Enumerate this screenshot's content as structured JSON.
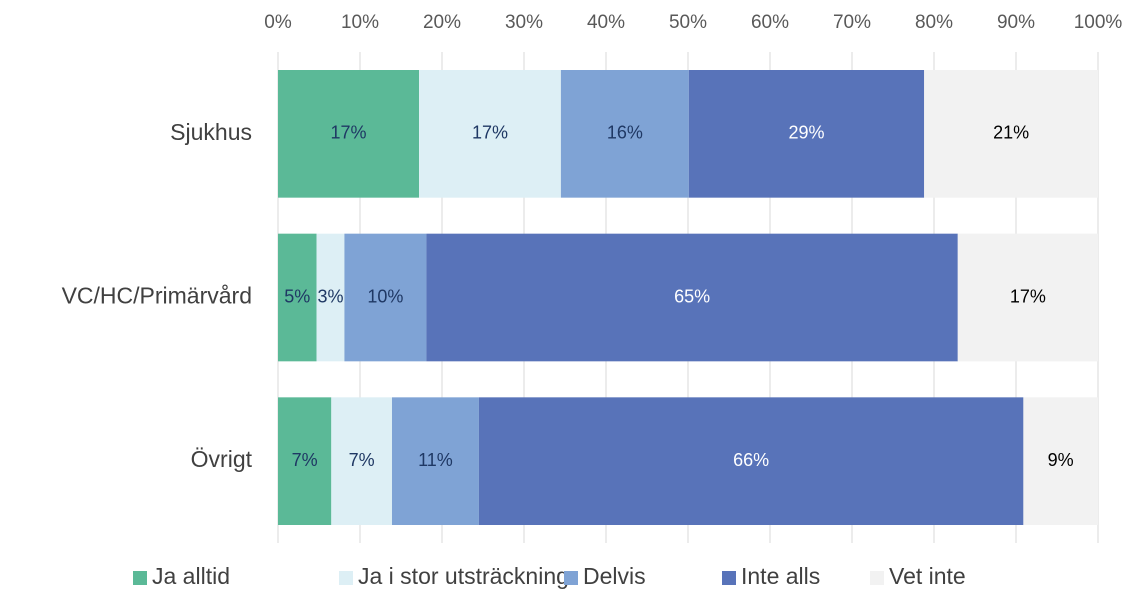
{
  "chart_data": {
    "type": "stacked_barh",
    "categories": [
      "Sjukhus",
      "VC/HC/Primärvård",
      "Övrigt"
    ],
    "series": [
      {
        "name": "Ja alltid",
        "color": "#5bb997",
        "label_color": "#1f3864",
        "values": [
          17.2,
          4.7,
          6.5
        ],
        "value_labels": [
          "17%",
          "5%",
          "7%"
        ]
      },
      {
        "name": "Ja i stor utsträckning",
        "color": "#ddeff5",
        "label_color": "#1f3864",
        "values": [
          17.3,
          3.4,
          7.4
        ],
        "value_labels": [
          "17%",
          "3%",
          "7%"
        ]
      },
      {
        "name": "Delvis",
        "color": "#7fa3d5",
        "label_color": "#1f3864",
        "values": [
          15.6,
          10.0,
          10.6
        ],
        "value_labels": [
          "16%",
          "10%",
          "11%"
        ]
      },
      {
        "name": "Inte alls",
        "color": "#5873b9",
        "label_color": "#ffffff",
        "values": [
          28.7,
          64.8,
          66.4
        ],
        "value_labels": [
          "29%",
          "65%",
          "66%"
        ]
      },
      {
        "name": "Vet inte",
        "color": "#f2f2f2",
        "label_color": "#000000",
        "values": [
          21.2,
          17.1,
          9.1
        ],
        "value_labels": [
          "21%",
          "17%",
          "9%"
        ]
      }
    ],
    "xlim": [
      0,
      100
    ],
    "xticks": [
      {
        "value": 0,
        "label": "0%"
      },
      {
        "value": 10,
        "label": "10%"
      },
      {
        "value": 20,
        "label": "20%"
      },
      {
        "value": 30,
        "label": "30%"
      },
      {
        "value": 40,
        "label": "40%"
      },
      {
        "value": 50,
        "label": "50%"
      },
      {
        "value": 60,
        "label": "60%"
      },
      {
        "value": 70,
        "label": "70%"
      },
      {
        "value": 80,
        "label": "80%"
      },
      {
        "value": 90,
        "label": "90%"
      },
      {
        "value": 100,
        "label": "100%"
      }
    ],
    "grid": true,
    "legend": "bottom"
  }
}
